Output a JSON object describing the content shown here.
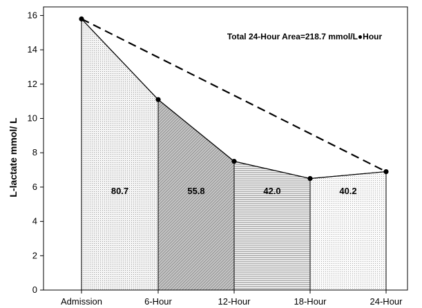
{
  "chart_data": {
    "type": "area",
    "title": "",
    "xlabel": "",
    "ylabel": "L-lactate mmol/ L",
    "categories": [
      "Admission",
      "6-Hour",
      "12-Hour",
      "18-Hour",
      "24-Hour"
    ],
    "values": [
      15.8,
      11.1,
      7.5,
      6.5,
      6.9
    ],
    "ylim": [
      0,
      16.5
    ],
    "yticks": [
      0,
      2,
      4,
      6,
      8,
      10,
      12,
      14,
      16
    ],
    "grid": false,
    "segment_areas": [
      "80.7",
      "55.8",
      "42.0",
      "40.2"
    ],
    "annotation": "Total 24-Hour Area=218.7 mmol/L●Hour",
    "trend_line": {
      "style": "dashed",
      "from": "Admission",
      "to": "24-Hour"
    }
  }
}
